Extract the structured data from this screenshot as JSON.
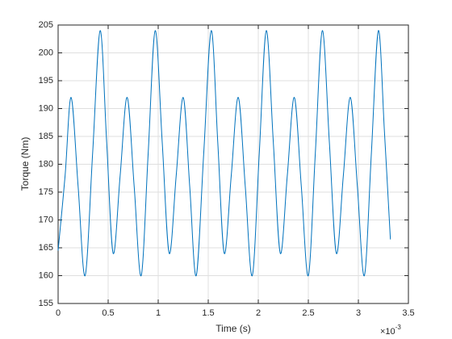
{
  "chart_data": {
    "type": "line",
    "x_label": "Time (s)",
    "y_label": "Torque (Nm)",
    "x_multiplier": {
      "base": "×10",
      "exponent": "-3"
    },
    "x": [
      0,
      0.07,
      0.13,
      0.2,
      0.27,
      0.345,
      0.42,
      0.485,
      0.55,
      0.62,
      0.69,
      0.76,
      0.83,
      0.9,
      0.97,
      1.04,
      1.11,
      1.18,
      1.25,
      1.315,
      1.38,
      1.455,
      1.53,
      1.595,
      1.66,
      1.73,
      1.8,
      1.87,
      1.94,
      2.01,
      2.08,
      2.15,
      2.22,
      2.29,
      2.36,
      2.43,
      2.5,
      2.57,
      2.64,
      2.71,
      2.78,
      2.85,
      2.92,
      2.99,
      3.06,
      3.13,
      3.2,
      3.26,
      3.32
    ],
    "series": [
      {
        "color": "#0072bd",
        "values": [
          164.5,
          178,
          192,
          176,
          160,
          182,
          204,
          184,
          164,
          178,
          192,
          176,
          160,
          182,
          204,
          184,
          164,
          178,
          192,
          176,
          160,
          182,
          204,
          184,
          164,
          178,
          192,
          176,
          160,
          182,
          204,
          184,
          164,
          178,
          192,
          176,
          160,
          182,
          204,
          184,
          164,
          178,
          192,
          176,
          160,
          182,
          204,
          186,
          166.5
        ]
      }
    ],
    "xlim": [
      0,
      3.5
    ],
    "xticks": [
      0,
      0.5,
      1,
      1.5,
      2,
      2.5,
      3,
      3.5
    ],
    "ylim": [
      155,
      205
    ],
    "yticks": [
      155,
      160,
      165,
      170,
      175,
      180,
      185,
      190,
      195,
      200,
      205
    ],
    "grid": true
  }
}
